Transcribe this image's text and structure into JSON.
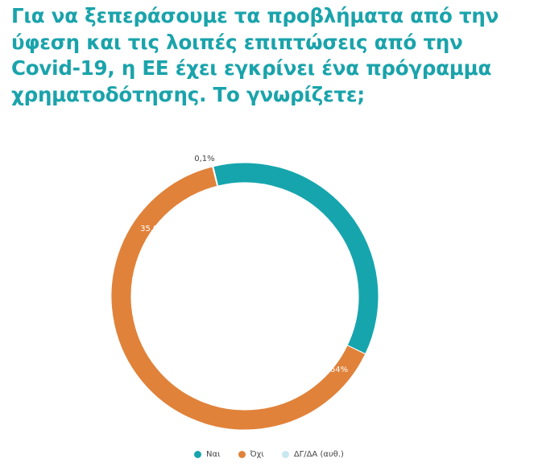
{
  "chart_data": {
    "type": "pie",
    "title": "Για να ξεπεράσουμε τα προβλήματα από την ύφεση και τις λοιπές επιπτώσεις από την Covid-19, η ΕΕ έχει εγκρίνει ένα πρόγραμμα χρηματοδότησης. Το γνωρίζετε;",
    "slices": [
      {
        "label": "Ναι",
        "value": 35.9,
        "value_label": "35,9%",
        "color": "#16a5ad",
        "label_color": "#ffffff"
      },
      {
        "label": "Όχι",
        "value": 64.0,
        "value_label": "64%",
        "color": "#e0823a",
        "label_color": "#ffffff"
      },
      {
        "label": "ΔΓ/ΔΑ (αυθ.)",
        "value": 0.1,
        "value_label": "0,1%",
        "color": "#c7e8ee",
        "label_color": "#444444"
      }
    ],
    "legend_position": "bottom"
  }
}
